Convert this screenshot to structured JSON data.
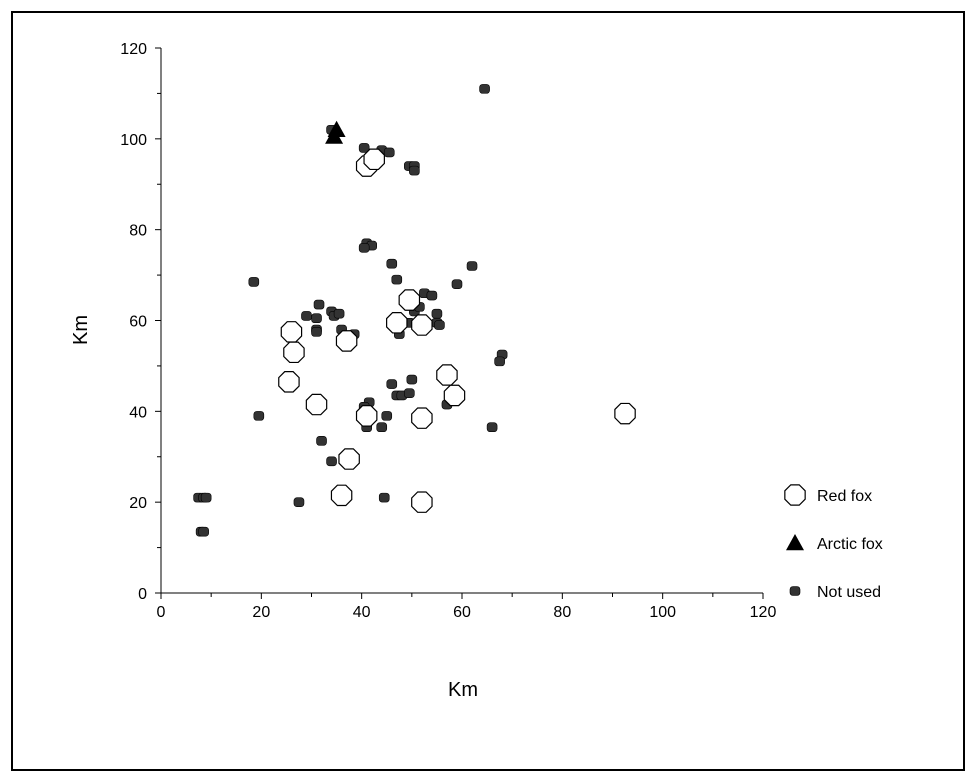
{
  "chart_data": {
    "type": "scatter",
    "title": "",
    "xlabel": "Km",
    "ylabel": "Km",
    "xlim": [
      0,
      120
    ],
    "ylim": [
      0,
      120
    ],
    "xticks": [
      "0",
      "20",
      "40",
      "60",
      "80",
      "100",
      "120"
    ],
    "yticks": [
      "0",
      "20",
      "40",
      "60",
      "80",
      "100",
      "120"
    ],
    "grid": false,
    "legend_position": "right",
    "series": [
      {
        "name": "Red fox",
        "marker": "octagon-open",
        "points": [
          [
            41,
            94
          ],
          [
            42.5,
            95.5
          ],
          [
            26,
            57.5
          ],
          [
            26.5,
            53
          ],
          [
            37,
            55.5
          ],
          [
            25.5,
            46.5
          ],
          [
            31,
            41.5
          ],
          [
            41,
            39
          ],
          [
            49.5,
            64.5
          ],
          [
            47,
            59.5
          ],
          [
            52,
            59
          ],
          [
            57,
            48
          ],
          [
            58.5,
            43.5
          ],
          [
            52,
            38.5
          ],
          [
            37.5,
            29.5
          ],
          [
            36,
            21.5
          ],
          [
            52,
            20
          ],
          [
            92.5,
            39.5
          ]
        ]
      },
      {
        "name": "Arctic fox",
        "marker": "triangle-filled",
        "points": [
          [
            35,
            102
          ],
          [
            34.5,
            100.5
          ]
        ]
      },
      {
        "name": "Not used",
        "marker": "dot",
        "points": [
          [
            64.5,
            111
          ],
          [
            34,
            102
          ],
          [
            40.5,
            98
          ],
          [
            44,
            97.5
          ],
          [
            45.5,
            97
          ],
          [
            43,
            95.5
          ],
          [
            49.5,
            94
          ],
          [
            50.5,
            94
          ],
          [
            50.5,
            93
          ],
          [
            41,
            77
          ],
          [
            42,
            76.5
          ],
          [
            40.5,
            76
          ],
          [
            46,
            72.5
          ],
          [
            62,
            72
          ],
          [
            18.5,
            68.5
          ],
          [
            47,
            69
          ],
          [
            59,
            68
          ],
          [
            52.5,
            66
          ],
          [
            54,
            65.5
          ],
          [
            31.5,
            63.5
          ],
          [
            34,
            62
          ],
          [
            34.5,
            61
          ],
          [
            35.5,
            61.5
          ],
          [
            29,
            61
          ],
          [
            31,
            60.5
          ],
          [
            55,
            61.5
          ],
          [
            50.5,
            62
          ],
          [
            51.5,
            63
          ],
          [
            49.5,
            59.5
          ],
          [
            52.5,
            59
          ],
          [
            55,
            59.5
          ],
          [
            55.5,
            59
          ],
          [
            31,
            58
          ],
          [
            31,
            57.5
          ],
          [
            36,
            58
          ],
          [
            38.5,
            57
          ],
          [
            47.5,
            57
          ],
          [
            36,
            55.5
          ],
          [
            27,
            53
          ],
          [
            68,
            52.5
          ],
          [
            67.5,
            51
          ],
          [
            50,
            47
          ],
          [
            46,
            46
          ],
          [
            47,
            43.5
          ],
          [
            48,
            43.5
          ],
          [
            49.5,
            44
          ],
          [
            41.5,
            42
          ],
          [
            40.5,
            41
          ],
          [
            57,
            41.5
          ],
          [
            19.5,
            39
          ],
          [
            45,
            39
          ],
          [
            41,
            36.5
          ],
          [
            44,
            36.5
          ],
          [
            66,
            36.5
          ],
          [
            32,
            33.5
          ],
          [
            34,
            29
          ],
          [
            7.5,
            21
          ],
          [
            8.5,
            21
          ],
          [
            9,
            21
          ],
          [
            27.5,
            20
          ],
          [
            44.5,
            21
          ],
          [
            36,
            21
          ],
          [
            8,
            13.5
          ],
          [
            8.5,
            13.5
          ]
        ]
      }
    ]
  }
}
